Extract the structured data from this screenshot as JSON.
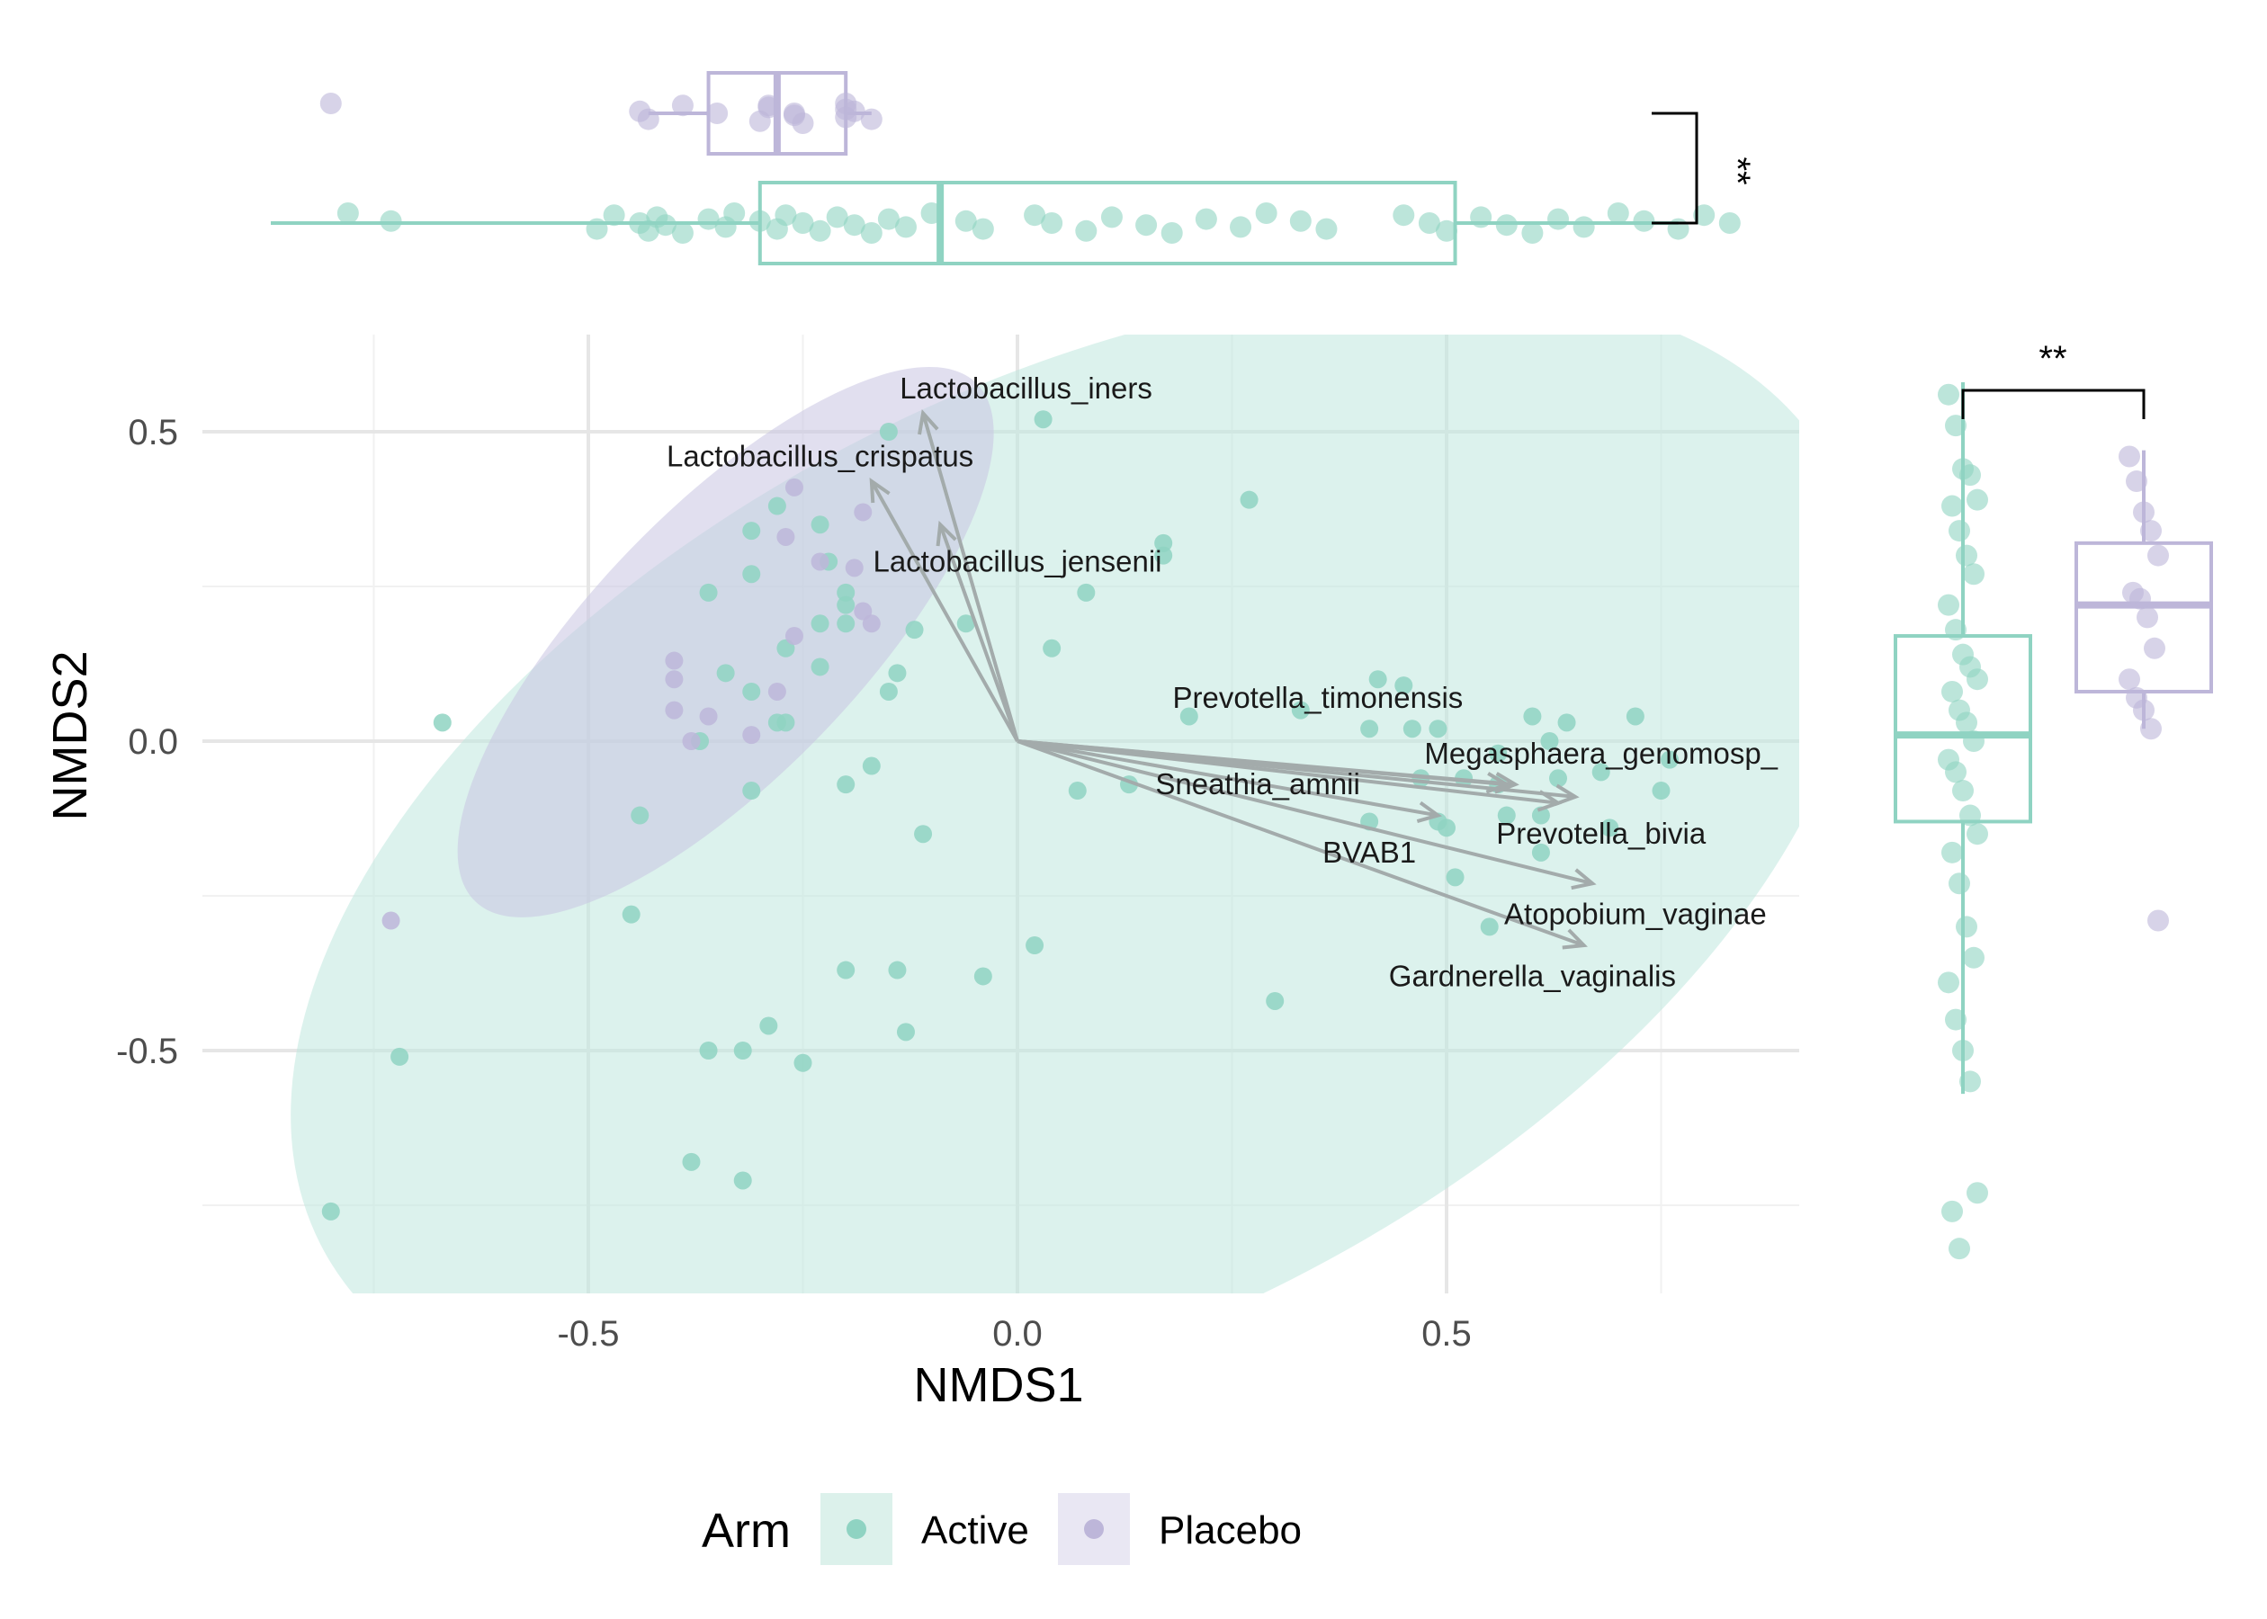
{
  "chart_data": {
    "type": "scatter",
    "xlabel": "NMDS1",
    "ylabel": "NMDS2",
    "xlim": [
      -0.95,
      0.92
    ],
    "ylim": [
      -0.9,
      0.65
    ],
    "xticks": [
      -0.5,
      0.0,
      0.5
    ],
    "yticks": [
      -0.5,
      0.0,
      0.5
    ],
    "xtick_labels": [
      "-0.5",
      "0.0",
      "0.5"
    ],
    "ytick_labels": [
      "-0.5",
      "0.0",
      "0.5"
    ],
    "grid": true,
    "legend": {
      "title": "Arm",
      "position": "bottom",
      "entries": [
        "Active",
        "Placebo"
      ]
    },
    "colors": {
      "Active": "#8fd3c2",
      "Placebo": "#bdb6d9",
      "vector": "#a3abab"
    },
    "series": [
      {
        "name": "Active",
        "points": [
          [
            -0.8,
            -0.76
          ],
          [
            -0.72,
            -0.51
          ],
          [
            -0.67,
            0.03
          ],
          [
            -0.44,
            -0.12
          ],
          [
            -0.45,
            -0.28
          ],
          [
            -0.38,
            -0.68
          ],
          [
            -0.36,
            -0.5
          ],
          [
            -0.32,
            -0.5
          ],
          [
            -0.32,
            -0.71
          ],
          [
            -0.29,
            -0.46
          ],
          [
            -0.25,
            -0.52
          ],
          [
            -0.2,
            -0.37
          ],
          [
            -0.14,
            -0.37
          ],
          [
            -0.13,
            -0.47
          ],
          [
            -0.04,
            -0.38
          ],
          [
            0.02,
            -0.33
          ],
          [
            0.3,
            -0.42
          ],
          [
            -0.15,
            0.5
          ],
          [
            0.03,
            0.52
          ],
          [
            0.27,
            0.39
          ],
          [
            0.17,
            0.32
          ],
          [
            0.17,
            0.3
          ],
          [
            -0.31,
            0.34
          ],
          [
            -0.28,
            0.38
          ],
          [
            -0.23,
            0.35
          ],
          [
            -0.22,
            0.29
          ],
          [
            -0.2,
            0.24
          ],
          [
            -0.31,
            0.27
          ],
          [
            -0.36,
            0.24
          ],
          [
            -0.27,
            0.15
          ],
          [
            -0.23,
            0.19
          ],
          [
            -0.2,
            0.22
          ],
          [
            -0.2,
            0.19
          ],
          [
            -0.12,
            0.18
          ],
          [
            -0.14,
            0.11
          ],
          [
            -0.15,
            0.08
          ],
          [
            -0.23,
            0.12
          ],
          [
            -0.34,
            0.11
          ],
          [
            -0.31,
            0.08
          ],
          [
            -0.28,
            0.03
          ],
          [
            -0.27,
            0.03
          ],
          [
            -0.37,
            0.0
          ],
          [
            -0.31,
            -0.08
          ],
          [
            -0.17,
            -0.04
          ],
          [
            -0.2,
            -0.07
          ],
          [
            -0.11,
            -0.15
          ],
          [
            -0.06,
            0.19
          ],
          [
            0.04,
            0.15
          ],
          [
            0.08,
            0.24
          ],
          [
            0.07,
            -0.08
          ],
          [
            0.13,
            -0.07
          ],
          [
            0.2,
            0.04
          ],
          [
            0.33,
            0.05
          ],
          [
            0.42,
            0.1
          ],
          [
            0.45,
            0.09
          ],
          [
            0.41,
            0.02
          ],
          [
            0.46,
            0.02
          ],
          [
            0.49,
            0.02
          ],
          [
            0.47,
            -0.06
          ],
          [
            0.49,
            -0.13
          ],
          [
            0.5,
            -0.14
          ],
          [
            0.51,
            -0.22
          ],
          [
            0.55,
            -0.3
          ],
          [
            0.41,
            -0.13
          ],
          [
            0.52,
            -0.06
          ],
          [
            0.56,
            -0.07
          ],
          [
            0.57,
            -0.12
          ],
          [
            0.6,
            0.04
          ],
          [
            0.61,
            -0.12
          ],
          [
            0.61,
            -0.18
          ],
          [
            0.62,
            0.0
          ],
          [
            0.63,
            -0.06
          ],
          [
            0.64,
            0.03
          ],
          [
            0.68,
            -0.05
          ],
          [
            0.69,
            -0.14
          ],
          [
            0.72,
            0.04
          ],
          [
            0.75,
            -0.08
          ],
          [
            0.76,
            -0.03
          ],
          [
            0.56,
            -0.02
          ]
        ]
      },
      {
        "name": "Placebo",
        "points": [
          [
            -0.73,
            -0.29
          ],
          [
            -0.4,
            0.13
          ],
          [
            -0.4,
            0.1
          ],
          [
            -0.4,
            0.05
          ],
          [
            -0.38,
            0.0
          ],
          [
            -0.36,
            0.04
          ],
          [
            -0.31,
            0.01
          ],
          [
            -0.28,
            0.08
          ],
          [
            -0.26,
            0.17
          ],
          [
            -0.27,
            0.33
          ],
          [
            -0.26,
            0.41
          ],
          [
            -0.23,
            0.29
          ],
          [
            -0.19,
            0.28
          ],
          [
            -0.18,
            0.37
          ],
          [
            -0.18,
            0.21
          ],
          [
            -0.17,
            0.19
          ]
        ]
      }
    ],
    "ellipses": [
      {
        "series": "Active",
        "center": [
          0.07,
          -0.19
        ],
        "semi_axes": [
          0.99,
          0.55
        ],
        "angle_deg": 27
      },
      {
        "series": "Placebo",
        "center": [
          -0.34,
          0.16
        ],
        "semi_axes": [
          0.42,
          0.155
        ],
        "angle_deg": 46
      }
    ],
    "vectors": [
      {
        "label": "Lactobacillus_iners",
        "end": [
          -0.11,
          0.53
        ],
        "label_pos": [
          0.01,
          0.57
        ]
      },
      {
        "label": "Lactobacillus_crispatus",
        "end": [
          -0.17,
          0.42
        ],
        "label_pos": [
          -0.23,
          0.46
        ]
      },
      {
        "label": "Lactobacillus_jensenii",
        "end": [
          -0.09,
          0.35
        ],
        "label_pos": [
          0.0,
          0.29
        ]
      },
      {
        "label": "Prevotella_timonensis",
        "end": [
          0.57,
          -0.07
        ],
        "label_pos": [
          0.35,
          0.07
        ]
      },
      {
        "label": "Megasphaera_genomosp_",
        "end": [
          0.65,
          -0.09
        ],
        "label_pos": [
          0.68,
          -0.02
        ]
      },
      {
        "label": "Sneathia_amnii",
        "end": [
          0.58,
          -0.07
        ],
        "label_pos": [
          0.28,
          -0.07
        ]
      },
      {
        "label": "BVAB1",
        "end": [
          0.49,
          -0.12
        ],
        "label_pos": [
          0.41,
          -0.18
        ]
      },
      {
        "label": "Prevotella_bivia",
        "end": [
          0.63,
          -0.1
        ],
        "label_pos": [
          0.68,
          -0.15
        ]
      },
      {
        "label": "Atopobium_vaginae",
        "end": [
          0.67,
          -0.23
        ],
        "label_pos": [
          0.72,
          -0.28
        ]
      },
      {
        "label": "Gardnerella_vaginalis",
        "end": [
          0.66,
          -0.33
        ],
        "label_pos": [
          0.6,
          -0.38
        ]
      }
    ],
    "top_marginal": {
      "axis": "NMDS1",
      "significance": "**",
      "boxes": [
        {
          "series": "Placebo",
          "q1": -0.36,
          "median": -0.28,
          "q3": -0.2,
          "whisker_low": -0.43,
          "whisker_high": -0.17,
          "points": [
            -0.8,
            -0.44,
            -0.43,
            -0.39,
            -0.35,
            -0.3,
            -0.29,
            -0.26,
            -0.25,
            -0.2,
            -0.2,
            -0.2,
            -0.19,
            -0.17,
            -0.29,
            -0.26
          ]
        },
        {
          "series": "Active",
          "q1": -0.3,
          "median": -0.09,
          "q3": 0.51,
          "whisker_low": -0.87,
          "whisker_high": 0.77,
          "points": [
            -0.78,
            -0.73,
            -0.49,
            -0.47,
            -0.44,
            -0.43,
            -0.42,
            -0.41,
            -0.39,
            -0.36,
            -0.34,
            -0.33,
            -0.3,
            -0.28,
            -0.27,
            -0.25,
            -0.23,
            -0.21,
            -0.19,
            -0.17,
            -0.15,
            -0.13,
            -0.1,
            -0.06,
            -0.04,
            0.02,
            0.04,
            0.08,
            0.11,
            0.15,
            0.18,
            0.22,
            0.26,
            0.29,
            0.33,
            0.36,
            0.45,
            0.48,
            0.5,
            0.54,
            0.57,
            0.6,
            0.63,
            0.66,
            0.7,
            0.73,
            0.77,
            0.8,
            0.83
          ]
        }
      ]
    },
    "right_marginal": {
      "axis": "NMDS2",
      "significance": "**",
      "boxes": [
        {
          "series": "Active",
          "q1": -0.13,
          "median": 0.01,
          "q3": 0.17,
          "whisker_low": -0.57,
          "whisker_high": 0.58,
          "points": [
            0.56,
            0.51,
            0.44,
            0.43,
            0.39,
            0.38,
            0.34,
            0.3,
            0.27,
            0.22,
            0.18,
            0.14,
            0.12,
            0.1,
            0.08,
            0.05,
            0.03,
            0.0,
            -0.03,
            -0.05,
            -0.08,
            -0.12,
            -0.15,
            -0.18,
            -0.23,
            -0.3,
            -0.35,
            -0.39,
            -0.45,
            -0.5,
            -0.55,
            -0.73,
            -0.76,
            -0.82
          ]
        },
        {
          "series": "Placebo",
          "q1": 0.08,
          "median": 0.22,
          "q3": 0.32,
          "whisker_low": 0.02,
          "whisker_high": 0.47,
          "points": [
            0.46,
            0.42,
            0.37,
            0.34,
            0.3,
            0.24,
            0.23,
            0.2,
            0.15,
            0.1,
            0.07,
            0.05,
            0.02,
            -0.29
          ]
        }
      ]
    }
  }
}
